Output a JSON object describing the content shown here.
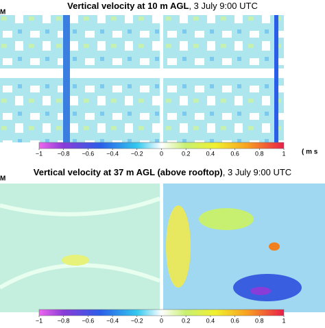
{
  "panels": [
    {
      "title_bold": "Vertical velocity at 10 m AGL",
      "title_rest": ", 3 July 9:00 UTC",
      "side_label": "M",
      "colorbar": {
        "lim": [
          -1,
          1
        ],
        "ticks": [
          {
            "value": -1,
            "label": "−1"
          },
          {
            "value": -0.8,
            "label": "−0.8"
          },
          {
            "value": -0.6,
            "label": "−0.6"
          },
          {
            "value": -0.4,
            "label": "−0.4"
          },
          {
            "value": -0.2,
            "label": "−0.2"
          },
          0,
          0.2,
          0.4,
          0.6,
          0.8,
          1
        ],
        "unit": "( m s"
      }
    },
    {
      "title_bold": "Vertical velocity at 37 m AGL (above rooftop)",
      "title_rest": ", 3 July 9:00 UTC",
      "side_label": "M",
      "colorbar": {
        "lim": [
          -1,
          1
        ],
        "ticks": [
          {
            "value": -1,
            "label": "−1"
          },
          {
            "value": -0.8,
            "label": "−0.8"
          },
          {
            "value": -0.6,
            "label": "−0.6"
          },
          {
            "value": -0.4,
            "label": "−0.4"
          },
          {
            "value": -0.2,
            "label": "−0.2"
          },
          0,
          0.2,
          0.4,
          0.6,
          0.8,
          1
        ]
      }
    }
  ]
}
